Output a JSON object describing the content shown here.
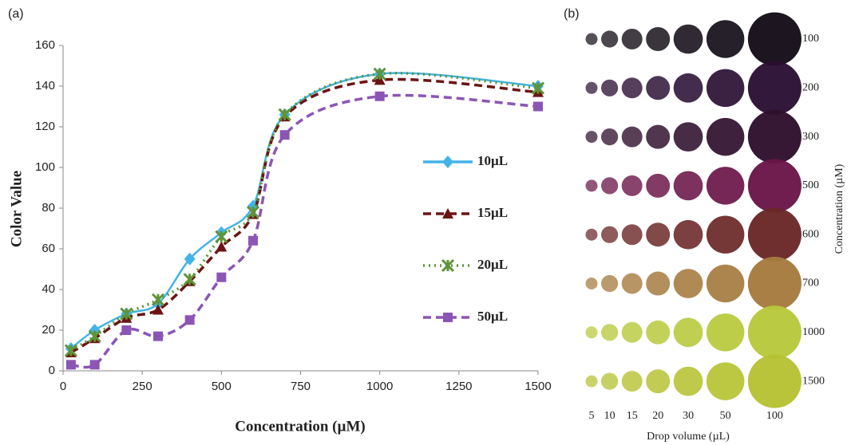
{
  "chart_data": [
    {
      "type": "line",
      "label": "(a)",
      "y_label": "Color Value",
      "x_label": "Concentration (µM)",
      "x": [
        25,
        100,
        200,
        300,
        400,
        500,
        600,
        700,
        1000,
        1500
      ],
      "series": [
        {
          "name": "10µL",
          "color": "#42b4e6",
          "marker": "diamond",
          "dash": "solid",
          "values": [
            11,
            20,
            28,
            33,
            55,
            68,
            81,
            126,
            146,
            140
          ]
        },
        {
          "name": "15µL",
          "color": "#6b1414",
          "marker": "triangle",
          "dash": "dashed",
          "values": [
            9,
            16,
            26,
            30,
            44,
            61,
            77,
            125,
            143,
            137
          ]
        },
        {
          "name": "20µL",
          "color": "#5f9438",
          "marker": "cross",
          "dash": "dotted",
          "values": [
            10,
            17,
            28,
            35,
            45,
            66,
            78,
            126,
            146,
            139
          ]
        },
        {
          "name": "50µL",
          "color": "#8b55b5",
          "marker": "square",
          "dash": "dashed",
          "values": [
            3,
            3,
            20,
            17,
            25,
            46,
            64,
            116,
            135,
            130
          ]
        }
      ],
      "xlim": [
        0,
        1500
      ],
      "xticks": [
        0,
        250,
        500,
        750,
        1000,
        1250,
        1500
      ],
      "ylim": [
        0,
        160
      ],
      "yticks": [
        0,
        20,
        40,
        60,
        80,
        100,
        120,
        140,
        160
      ],
      "legend": "center-right"
    },
    {
      "type": "dot-grid",
      "label": "(b)",
      "x_label": "Drop volume (µL)",
      "y_label": "Concentration (µM)",
      "categories": [
        5,
        10,
        15,
        20,
        30,
        50,
        100
      ],
      "rows": [
        100,
        200,
        300,
        500,
        600,
        700,
        1000,
        1500
      ],
      "colors": [
        "#140d18",
        "#2a0f33",
        "#2e0f2c",
        "#6a1548",
        "#6a2626",
        "#a57a3e",
        "#b7c83a",
        "#b6c232"
      ]
    }
  ]
}
